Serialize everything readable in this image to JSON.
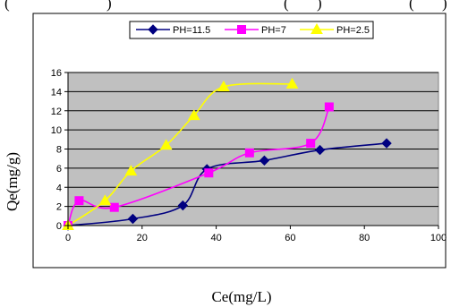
{
  "top_text_fragments": [
    "(",
    ")",
    "(",
    ")",
    "(",
    ")"
  ],
  "chart_data": {
    "type": "line",
    "xlabel": "Ce(mg/L)",
    "ylabel": "Qe(mg/g)",
    "xlim": [
      0,
      100
    ],
    "ylim": [
      0,
      16
    ],
    "x_ticks": [
      0,
      20,
      40,
      60,
      80,
      100
    ],
    "y_ticks": [
      0,
      2,
      4,
      6,
      8,
      10,
      12,
      14,
      16
    ],
    "grid": "horizontal",
    "legend_position": "top",
    "plot_background": "#c0c0c0",
    "series": [
      {
        "name": "PH=11.5",
        "color": "#000080",
        "marker": "diamond",
        "points": [
          [
            0,
            0
          ],
          [
            17.5,
            0.7
          ],
          [
            31,
            2.1
          ],
          [
            37.5,
            5.9
          ],
          [
            53,
            6.8
          ],
          [
            68,
            7.9
          ],
          [
            86,
            8.6
          ]
        ]
      },
      {
        "name": "PH=7",
        "color": "#ff00ff",
        "marker": "square",
        "points": [
          [
            0,
            0
          ],
          [
            3,
            2.6
          ],
          [
            12.5,
            1.9
          ],
          [
            38,
            5.5
          ],
          [
            49,
            7.6
          ],
          [
            65.5,
            8.6
          ],
          [
            70.5,
            12.4
          ]
        ]
      },
      {
        "name": "PH=2.5",
        "color": "#ffff00",
        "marker": "triangle",
        "points": [
          [
            0,
            0
          ],
          [
            10,
            2.6
          ],
          [
            17,
            5.7
          ],
          [
            26.5,
            8.4
          ],
          [
            34,
            11.5
          ],
          [
            42,
            14.5
          ],
          [
            60.5,
            14.8
          ]
        ]
      }
    ]
  }
}
